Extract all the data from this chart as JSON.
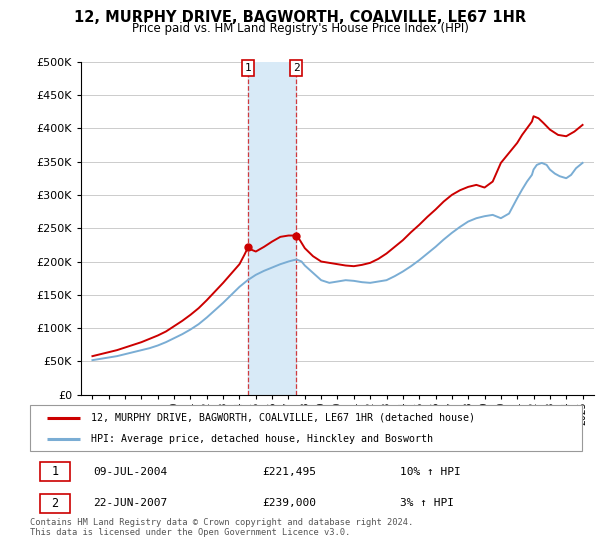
{
  "title": "12, MURPHY DRIVE, BAGWORTH, COALVILLE, LE67 1HR",
  "subtitle": "Price paid vs. HM Land Registry's House Price Index (HPI)",
  "legend_line1": "12, MURPHY DRIVE, BAGWORTH, COALVILLE, LE67 1HR (detached house)",
  "legend_line2": "HPI: Average price, detached house, Hinckley and Bosworth",
  "annotation1_date": "09-JUL-2004",
  "annotation1_price": "£221,495",
  "annotation1_hpi": "10% ↑ HPI",
  "annotation1_year": 2004.53,
  "annotation2_date": "22-JUN-2007",
  "annotation2_price": "£239,000",
  "annotation2_hpi": "3% ↑ HPI",
  "annotation2_year": 2007.47,
  "footer": "Contains HM Land Registry data © Crown copyright and database right 2024.\nThis data is licensed under the Open Government Licence v3.0.",
  "line_color_sold": "#cc0000",
  "line_color_hpi": "#7aadd4",
  "shade_color": "#d8eaf7",
  "annotation_box_color": "#cc0000",
  "ylim": [
    0,
    500000
  ],
  "xlim_min": 1994.3,
  "xlim_max": 2025.7,
  "hpi_years": [
    1995,
    1995.5,
    1996,
    1996.5,
    1997,
    1997.5,
    1998,
    1998.5,
    1999,
    1999.5,
    2000,
    2000.5,
    2001,
    2001.5,
    2002,
    2002.5,
    2003,
    2003.5,
    2004,
    2004.5,
    2005,
    2005.5,
    2006,
    2006.5,
    2007,
    2007.3,
    2007.5,
    2007.8,
    2008,
    2008.5,
    2009,
    2009.5,
    2010,
    2010.5,
    2011,
    2011.5,
    2012,
    2012.5,
    2013,
    2013.5,
    2014,
    2014.5,
    2015,
    2015.5,
    2016,
    2016.5,
    2017,
    2017.5,
    2018,
    2018.5,
    2019,
    2019.5,
    2020,
    2020.5,
    2021,
    2021.3,
    2021.6,
    2021.9,
    2022,
    2022.2,
    2022.5,
    2022.8,
    2023,
    2023.3,
    2023.6,
    2024,
    2024.3,
    2024.6,
    2025
  ],
  "hpi_values": [
    52000,
    54000,
    56000,
    58000,
    61000,
    64000,
    67000,
    70000,
    74000,
    79000,
    85000,
    91000,
    98000,
    106000,
    116000,
    127000,
    138000,
    150000,
    162000,
    172000,
    180000,
    186000,
    191000,
    196000,
    200000,
    202000,
    203000,
    200000,
    194000,
    183000,
    172000,
    168000,
    170000,
    172000,
    171000,
    169000,
    168000,
    170000,
    172000,
    178000,
    185000,
    193000,
    202000,
    212000,
    222000,
    233000,
    243000,
    252000,
    260000,
    265000,
    268000,
    270000,
    265000,
    272000,
    295000,
    308000,
    320000,
    330000,
    338000,
    345000,
    348000,
    345000,
    338000,
    332000,
    328000,
    325000,
    330000,
    340000,
    348000
  ],
  "sold_years": [
    1995,
    1995.5,
    1996,
    1996.5,
    1997,
    1997.5,
    1998,
    1998.5,
    1999,
    1999.5,
    2000,
    2000.5,
    2001,
    2001.5,
    2002,
    2002.5,
    2003,
    2003.5,
    2004,
    2004.3,
    2004.53,
    2004.7,
    2005,
    2005.5,
    2006,
    2006.5,
    2007,
    2007.3,
    2007.47,
    2007.7,
    2008,
    2008.5,
    2009,
    2009.5,
    2010,
    2010.5,
    2011,
    2011.5,
    2012,
    2012.5,
    2013,
    2013.5,
    2014,
    2014.5,
    2015,
    2015.5,
    2016,
    2016.5,
    2017,
    2017.5,
    2018,
    2018.5,
    2019,
    2019.5,
    2020,
    2020.5,
    2021,
    2021.3,
    2021.6,
    2021.9,
    2022,
    2022.3,
    2022.6,
    2023,
    2023.5,
    2024,
    2024.5,
    2025
  ],
  "sold_values": [
    58000,
    61000,
    64000,
    67000,
    71000,
    75000,
    79000,
    84000,
    89000,
    95000,
    103000,
    111000,
    120000,
    130000,
    142000,
    155000,
    168000,
    182000,
    196000,
    210000,
    221495,
    218000,
    215000,
    222000,
    230000,
    237000,
    239000,
    239000,
    239000,
    232000,
    220000,
    208000,
    200000,
    198000,
    196000,
    194000,
    193000,
    195000,
    198000,
    204000,
    212000,
    222000,
    232000,
    244000,
    255000,
    267000,
    278000,
    290000,
    300000,
    307000,
    312000,
    315000,
    311000,
    320000,
    348000,
    363000,
    378000,
    390000,
    400000,
    410000,
    418000,
    415000,
    408000,
    398000,
    390000,
    388000,
    395000,
    405000
  ]
}
